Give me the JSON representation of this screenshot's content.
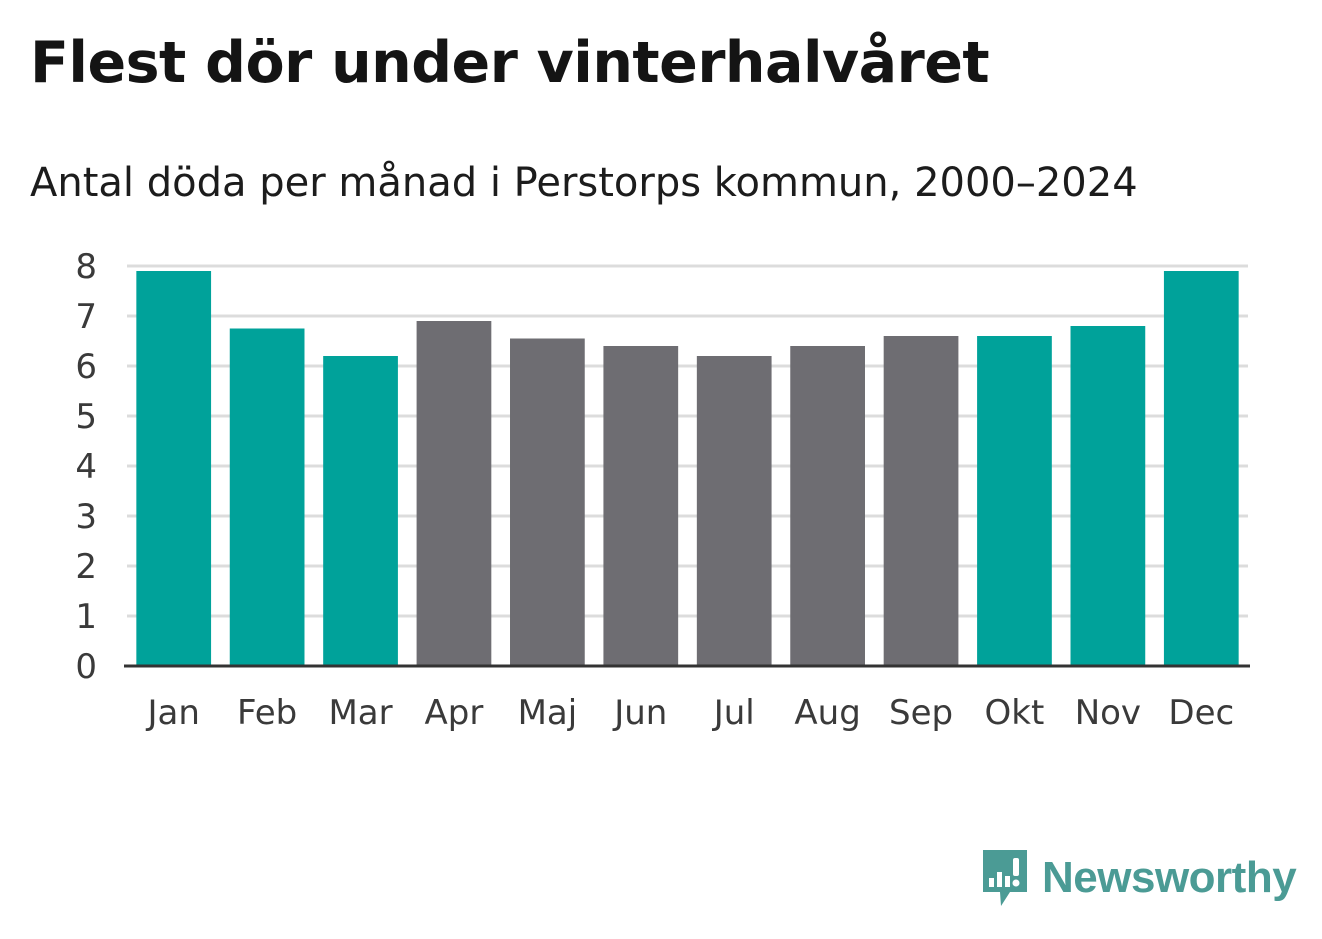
{
  "title": "Flest dör under vinterhalvåret",
  "subtitle": "Antal döda per månad i Perstorps kommun, 2000–2024",
  "brand": {
    "name": "Newsworthy",
    "icon": "newsworthy-logo-icon",
    "color": "#4b9b95"
  },
  "colors": {
    "highlight": "#00a29a",
    "base": "#6e6d72",
    "grid": "#dcdcdc",
    "axis": "#333333"
  },
  "chart_data": {
    "type": "bar",
    "title": "Flest dör under vinterhalvåret",
    "subtitle": "Antal döda per månad i Perstorps kommun, 2000–2024",
    "xlabel": "",
    "ylabel": "",
    "ylim": [
      0,
      8
    ],
    "yticks": [
      0,
      1,
      2,
      3,
      4,
      5,
      6,
      7,
      8
    ],
    "grid": true,
    "legend": "none",
    "categories": [
      "Jan",
      "Feb",
      "Mar",
      "Apr",
      "Maj",
      "Jun",
      "Jul",
      "Aug",
      "Sep",
      "Okt",
      "Nov",
      "Dec"
    ],
    "values": [
      7.9,
      6.75,
      6.2,
      6.9,
      6.55,
      6.4,
      6.2,
      6.4,
      6.6,
      6.6,
      6.8,
      7.9
    ],
    "highlighted": [
      true,
      true,
      true,
      false,
      false,
      false,
      false,
      false,
      false,
      true,
      true,
      true
    ]
  }
}
